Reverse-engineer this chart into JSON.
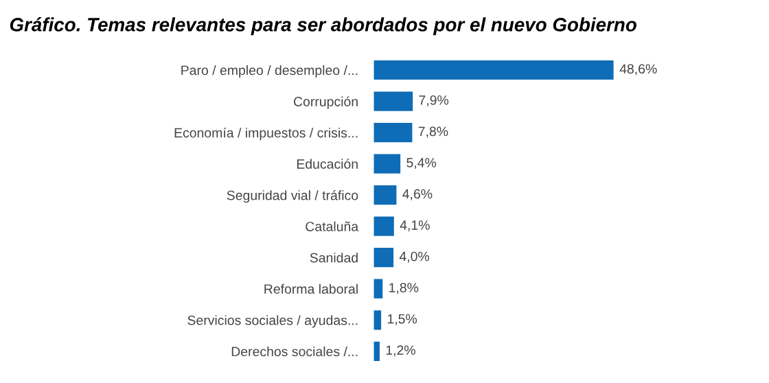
{
  "chart_data": {
    "type": "bar",
    "orientation": "horizontal",
    "title": "Gráfico. Temas relevantes para ser abordados por el nuevo Gobierno",
    "categories": [
      "Paro / empleo / desempleo /...",
      "Corrupción",
      "Economía / impuestos / crisis...",
      "Educación",
      "Seguridad vial / tráfico",
      "Cataluña",
      "Sanidad",
      "Reforma laboral",
      "Servicios sociales / ayudas...",
      "Derechos sociales /..."
    ],
    "values": [
      48.6,
      7.9,
      7.8,
      5.4,
      4.6,
      4.1,
      4.0,
      1.8,
      1.5,
      1.2
    ],
    "value_labels": [
      "48,6%",
      "7,9%",
      "7,8%",
      "5,4%",
      "4,6%",
      "4,1%",
      "4,0%",
      "1,8%",
      "1,5%",
      "1,2%"
    ],
    "color": "#0f6cb6",
    "grid": false,
    "legend": false
  }
}
